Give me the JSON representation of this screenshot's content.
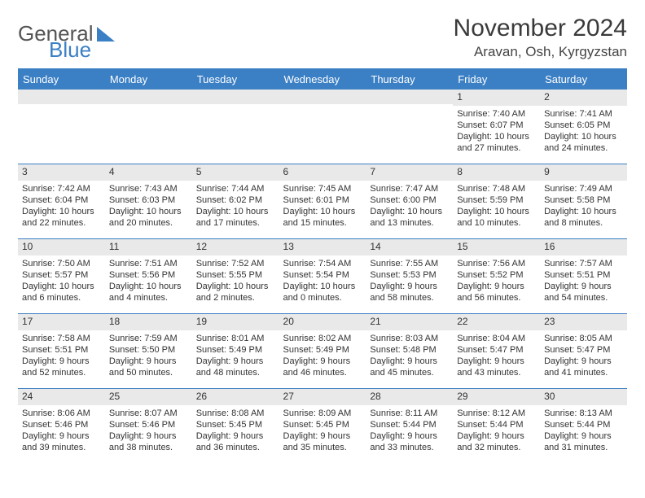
{
  "logo": {
    "word1": "General",
    "word2": "Blue"
  },
  "title": "November 2024",
  "location": "Aravan, Osh, Kyrgyzstan",
  "colors": {
    "accent": "#3b7fc4",
    "header_bg": "#3b7fc4",
    "daynum_bg": "#e9e9e9",
    "text": "#333333",
    "bg": "#ffffff"
  },
  "daynames": [
    "Sunday",
    "Monday",
    "Tuesday",
    "Wednesday",
    "Thursday",
    "Friday",
    "Saturday"
  ],
  "weeks": [
    [
      null,
      null,
      null,
      null,
      null,
      {
        "n": "1",
        "sr": "7:40 AM",
        "ss": "6:07 PM",
        "dl": "10 hours and 27 minutes."
      },
      {
        "n": "2",
        "sr": "7:41 AM",
        "ss": "6:05 PM",
        "dl": "10 hours and 24 minutes."
      }
    ],
    [
      {
        "n": "3",
        "sr": "7:42 AM",
        "ss": "6:04 PM",
        "dl": "10 hours and 22 minutes."
      },
      {
        "n": "4",
        "sr": "7:43 AM",
        "ss": "6:03 PM",
        "dl": "10 hours and 20 minutes."
      },
      {
        "n": "5",
        "sr": "7:44 AM",
        "ss": "6:02 PM",
        "dl": "10 hours and 17 minutes."
      },
      {
        "n": "6",
        "sr": "7:45 AM",
        "ss": "6:01 PM",
        "dl": "10 hours and 15 minutes."
      },
      {
        "n": "7",
        "sr": "7:47 AM",
        "ss": "6:00 PM",
        "dl": "10 hours and 13 minutes."
      },
      {
        "n": "8",
        "sr": "7:48 AM",
        "ss": "5:59 PM",
        "dl": "10 hours and 10 minutes."
      },
      {
        "n": "9",
        "sr": "7:49 AM",
        "ss": "5:58 PM",
        "dl": "10 hours and 8 minutes."
      }
    ],
    [
      {
        "n": "10",
        "sr": "7:50 AM",
        "ss": "5:57 PM",
        "dl": "10 hours and 6 minutes."
      },
      {
        "n": "11",
        "sr": "7:51 AM",
        "ss": "5:56 PM",
        "dl": "10 hours and 4 minutes."
      },
      {
        "n": "12",
        "sr": "7:52 AM",
        "ss": "5:55 PM",
        "dl": "10 hours and 2 minutes."
      },
      {
        "n": "13",
        "sr": "7:54 AM",
        "ss": "5:54 PM",
        "dl": "10 hours and 0 minutes."
      },
      {
        "n": "14",
        "sr": "7:55 AM",
        "ss": "5:53 PM",
        "dl": "9 hours and 58 minutes."
      },
      {
        "n": "15",
        "sr": "7:56 AM",
        "ss": "5:52 PM",
        "dl": "9 hours and 56 minutes."
      },
      {
        "n": "16",
        "sr": "7:57 AM",
        "ss": "5:51 PM",
        "dl": "9 hours and 54 minutes."
      }
    ],
    [
      {
        "n": "17",
        "sr": "7:58 AM",
        "ss": "5:51 PM",
        "dl": "9 hours and 52 minutes."
      },
      {
        "n": "18",
        "sr": "7:59 AM",
        "ss": "5:50 PM",
        "dl": "9 hours and 50 minutes."
      },
      {
        "n": "19",
        "sr": "8:01 AM",
        "ss": "5:49 PM",
        "dl": "9 hours and 48 minutes."
      },
      {
        "n": "20",
        "sr": "8:02 AM",
        "ss": "5:49 PM",
        "dl": "9 hours and 46 minutes."
      },
      {
        "n": "21",
        "sr": "8:03 AM",
        "ss": "5:48 PM",
        "dl": "9 hours and 45 minutes."
      },
      {
        "n": "22",
        "sr": "8:04 AM",
        "ss": "5:47 PM",
        "dl": "9 hours and 43 minutes."
      },
      {
        "n": "23",
        "sr": "8:05 AM",
        "ss": "5:47 PM",
        "dl": "9 hours and 41 minutes."
      }
    ],
    [
      {
        "n": "24",
        "sr": "8:06 AM",
        "ss": "5:46 PM",
        "dl": "9 hours and 39 minutes."
      },
      {
        "n": "25",
        "sr": "8:07 AM",
        "ss": "5:46 PM",
        "dl": "9 hours and 38 minutes."
      },
      {
        "n": "26",
        "sr": "8:08 AM",
        "ss": "5:45 PM",
        "dl": "9 hours and 36 minutes."
      },
      {
        "n": "27",
        "sr": "8:09 AM",
        "ss": "5:45 PM",
        "dl": "9 hours and 35 minutes."
      },
      {
        "n": "28",
        "sr": "8:11 AM",
        "ss": "5:44 PM",
        "dl": "9 hours and 33 minutes."
      },
      {
        "n": "29",
        "sr": "8:12 AM",
        "ss": "5:44 PM",
        "dl": "9 hours and 32 minutes."
      },
      {
        "n": "30",
        "sr": "8:13 AM",
        "ss": "5:44 PM",
        "dl": "9 hours and 31 minutes."
      }
    ]
  ],
  "labels": {
    "sunrise": "Sunrise: ",
    "sunset": "Sunset: ",
    "daylight": "Daylight: "
  }
}
